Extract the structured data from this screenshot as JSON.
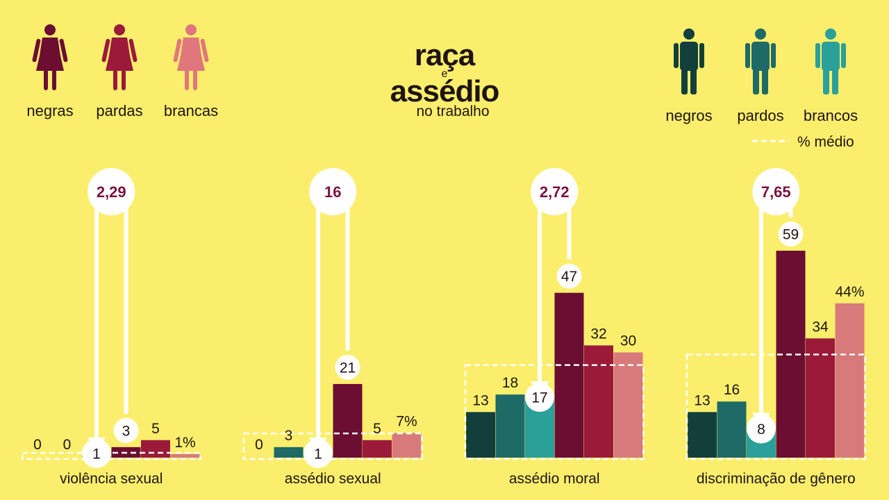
{
  "title": {
    "line1": "raça",
    "line2": "e",
    "line3": "assédio",
    "line4": "no trabalho"
  },
  "legend": {
    "women": [
      {
        "label": "negras",
        "color": "#6b0e32"
      },
      {
        "label": "pardas",
        "color": "#9b1a3a"
      },
      {
        "label": "brancas",
        "color": "#e0777c"
      }
    ],
    "men": [
      {
        "label": "negros",
        "color": "#123f3c"
      },
      {
        "label": "pardos",
        "color": "#1e6a66"
      },
      {
        "label": "brancos",
        "color": "#2ba09a"
      }
    ],
    "average_label": "% médio"
  },
  "chart_data": {
    "type": "bar",
    "unit": "%",
    "series_order": [
      "negros",
      "pardos",
      "brancos",
      "negras",
      "pardas",
      "brancas"
    ],
    "colors": [
      "#123f3c",
      "#1e6a66",
      "#2ba09a",
      "#6b0e32",
      "#9b1a3a",
      "#d87a7b"
    ],
    "groups": [
      {
        "category": "violência sexual",
        "values": [
          0,
          0,
          1,
          3,
          5,
          1
        ],
        "value_labels": [
          "0",
          "0",
          "1",
          "3",
          "5",
          "1%"
        ],
        "average": 1.0,
        "ratio_label": "2,29",
        "ratio_from": "brancos",
        "ratio_to": "negras"
      },
      {
        "category": "assédio sexual",
        "values": [
          0,
          3,
          1,
          21,
          5,
          7
        ],
        "value_labels": [
          "0",
          "3",
          "1",
          "21",
          "5",
          "7%"
        ],
        "average": 6.5,
        "ratio_label": "16",
        "ratio_from": "brancos",
        "ratio_to": "negras"
      },
      {
        "category": "assédio moral",
        "values": [
          13,
          18,
          17,
          47,
          32,
          30
        ],
        "value_labels": [
          "13",
          "18",
          "17",
          "47",
          "32",
          "30"
        ],
        "average": 26,
        "ratio_label": "2,72",
        "ratio_from": "brancos",
        "ratio_to": "negras"
      },
      {
        "category": "discriminação de gênero",
        "values": [
          13,
          16,
          8,
          59,
          34,
          44
        ],
        "value_labels": [
          "13",
          "16",
          "8",
          "59",
          "34",
          "44%"
        ],
        "average": 29,
        "ratio_label": "7,65",
        "ratio_from": "brancos",
        "ratio_to": "negras"
      }
    ]
  }
}
